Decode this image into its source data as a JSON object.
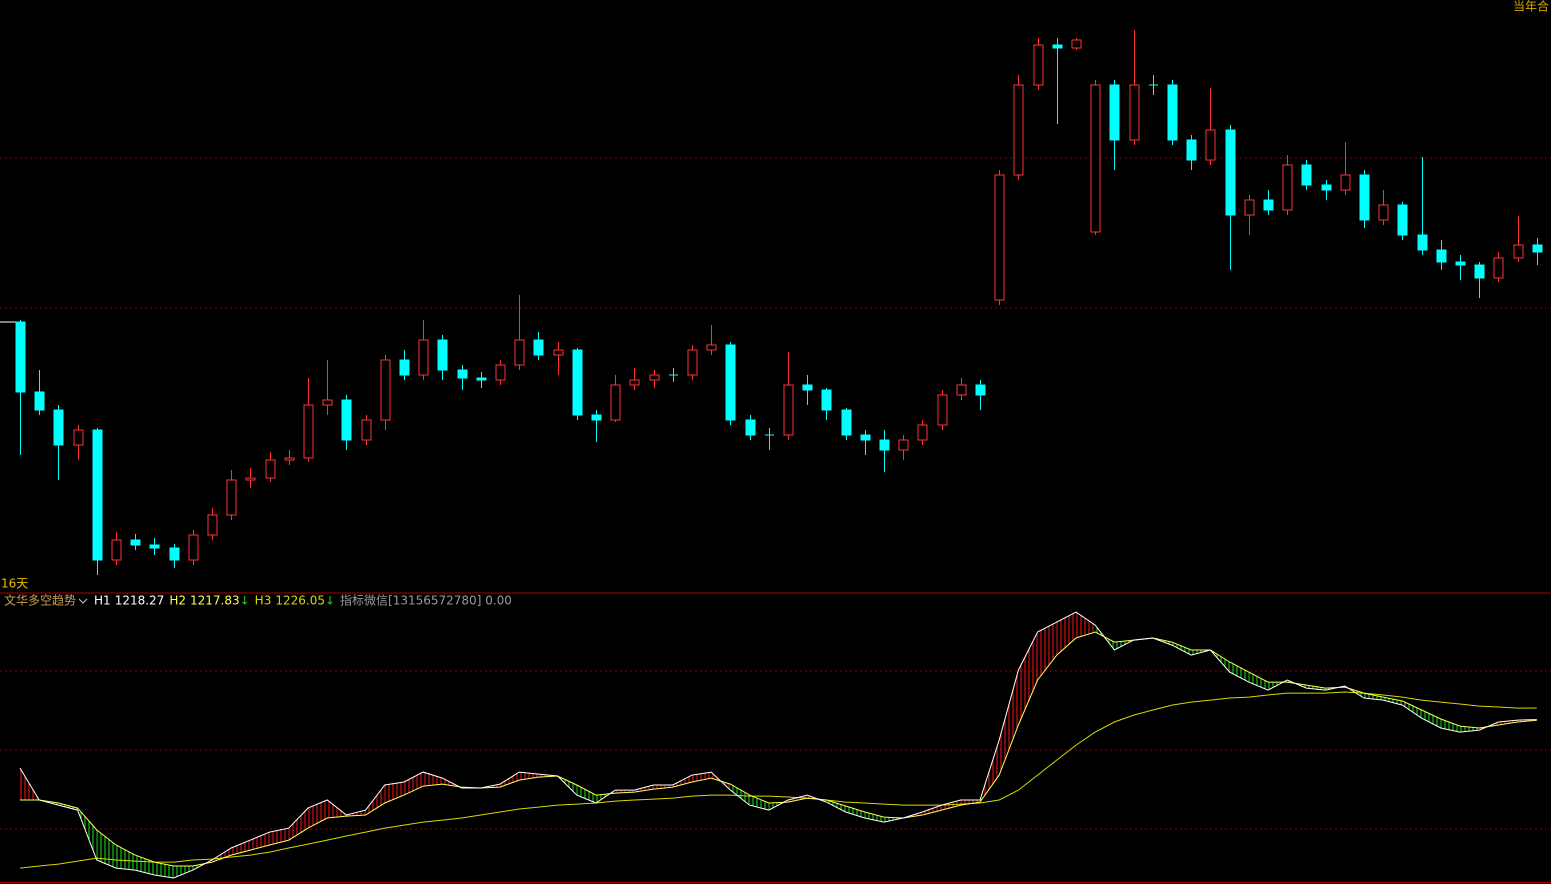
{
  "chart_data": [
    {
      "type": "candlestick",
      "corner_label": "当年合",
      "period_label": "16天",
      "up_color": "#ff3232",
      "down_color": "#00ffff",
      "ylim": [
        10,
        600
      ],
      "open": [
        278,
        208,
        190,
        155,
        170,
        40,
        60,
        55,
        52,
        40,
        65,
        85,
        120,
        122,
        140,
        142,
        195,
        200,
        160,
        180,
        240,
        225,
        260,
        230,
        222,
        220,
        235,
        260,
        245,
        250,
        185,
        180,
        215,
        220,
        225,
        225,
        250,
        255,
        180,
        165,
        165,
        215,
        210,
        190,
        165,
        160,
        150,
        160,
        175,
        205,
        215,
        300,
        425,
        515,
        555,
        552,
        368,
        515,
        460,
        515,
        515,
        460,
        440,
        470,
        385,
        400,
        390,
        435,
        415,
        410,
        425,
        380,
        395,
        365,
        350,
        338,
        335,
        322,
        342,
        355
      ],
      "high": [
        280,
        230,
        195,
        175,
        172,
        68,
        66,
        62,
        56,
        70,
        92,
        130,
        132,
        148,
        150,
        222,
        240,
        205,
        185,
        245,
        250,
        280,
        265,
        235,
        228,
        240,
        305,
        268,
        258,
        252,
        190,
        225,
        232,
        230,
        232,
        255,
        275,
        258,
        185,
        172,
        248,
        225,
        212,
        192,
        170,
        170,
        165,
        180,
        210,
        222,
        220,
        430,
        525,
        562,
        562,
        562,
        520,
        520,
        570,
        525,
        520,
        465,
        512,
        475,
        405,
        410,
        445,
        440,
        420,
        458,
        430,
        410,
        398,
        443,
        360,
        345,
        338,
        348,
        384,
        362
      ],
      "low": [
        145,
        185,
        120,
        140,
        25,
        35,
        50,
        45,
        32,
        35,
        60,
        80,
        112,
        118,
        135,
        138,
        185,
        150,
        155,
        170,
        220,
        220,
        220,
        210,
        212,
        215,
        230,
        240,
        225,
        180,
        158,
        178,
        210,
        212,
        218,
        220,
        245,
        175,
        160,
        150,
        160,
        195,
        180,
        160,
        145,
        128,
        140,
        155,
        170,
        200,
        190,
        295,
        420,
        510,
        476,
        550,
        365,
        430,
        455,
        505,
        455,
        430,
        435,
        330,
        365,
        385,
        385,
        410,
        400,
        405,
        372,
        375,
        360,
        345,
        330,
        320,
        302,
        318,
        338,
        335
      ],
      "close": [
        208,
        190,
        155,
        170,
        40,
        60,
        55,
        52,
        40,
        65,
        85,
        120,
        122,
        140,
        142,
        195,
        200,
        160,
        180,
        240,
        225,
        260,
        230,
        222,
        220,
        235,
        260,
        245,
        250,
        185,
        180,
        215,
        220,
        225,
        225,
        250,
        255,
        180,
        165,
        165,
        215,
        210,
        190,
        165,
        160,
        150,
        160,
        175,
        205,
        215,
        205,
        425,
        515,
        555,
        552,
        560,
        515,
        460,
        515,
        515,
        460,
        440,
        470,
        385,
        400,
        390,
        435,
        415,
        410,
        425,
        380,
        395,
        365,
        350,
        338,
        335,
        322,
        342,
        355,
        348
      ]
    },
    {
      "type": "line",
      "title": "文华多空趋势",
      "info_text": "指标微信[13156572780] 0.00",
      "ylim": [
        1108.7,
        1302.7
      ],
      "hatch_up_color": "#d01010",
      "hatch_down_color": "#10c010",
      "series": [
        {
          "name": "H1",
          "color": "#ffffff",
          "values": [
            1186,
            1164.7,
            1161.3,
            1158,
            1124.7,
            1119.3,
            1118,
            1114.7,
            1112.7,
            1118,
            1124.7,
            1132.7,
            1138,
            1143.3,
            1146,
            1159.3,
            1164.7,
            1154.7,
            1158,
            1174.7,
            1176.7,
            1183.3,
            1179.3,
            1172.7,
            1172.7,
            1175.3,
            1183.3,
            1182,
            1180.7,
            1168,
            1162.7,
            1171.3,
            1171.3,
            1174.7,
            1174.7,
            1181.3,
            1183.3,
            1171.3,
            1161.3,
            1158,
            1164.7,
            1168,
            1163.3,
            1156.7,
            1152.7,
            1150,
            1152.7,
            1156.7,
            1161.3,
            1164.7,
            1164.7,
            1204.7,
            1251.3,
            1276.7,
            1283.3,
            1290,
            1281.3,
            1264.7,
            1271.3,
            1272.7,
            1268,
            1261.3,
            1264.7,
            1250,
            1243.3,
            1238,
            1244.7,
            1239.3,
            1238,
            1240.7,
            1232.7,
            1231.3,
            1228,
            1219.3,
            1212.7,
            1210,
            1211.3,
            1216.7,
            1218,
            1218.27
          ]
        },
        {
          "name": "H2",
          "color": "#ffff50",
          "trend": "↓",
          "values": [
            1164.7,
            1164.7,
            1162.7,
            1159.3,
            1144.7,
            1134.7,
            1128,
            1123.3,
            1120.7,
            1120.7,
            1123.3,
            1128,
            1131.3,
            1134.7,
            1138,
            1146,
            1152.7,
            1154,
            1154.7,
            1162.7,
            1168,
            1174,
            1175.3,
            1173.3,
            1172.7,
            1173.3,
            1178,
            1180,
            1180.7,
            1174.7,
            1168,
            1169.3,
            1170,
            1172,
            1173.3,
            1176.7,
            1179.3,
            1175.3,
            1168,
            1162.7,
            1163.3,
            1166,
            1164.7,
            1160.7,
            1156.7,
            1153.3,
            1152.7,
            1154.7,
            1158,
            1161.3,
            1163.3,
            1181.3,
            1214.7,
            1244.7,
            1261.3,
            1272.7,
            1276.7,
            1270,
            1271.3,
            1272.7,
            1270,
            1264.7,
            1264.7,
            1256.7,
            1250,
            1243.3,
            1243.3,
            1241.3,
            1239.3,
            1240,
            1236,
            1233.3,
            1230.7,
            1224.7,
            1218.7,
            1214,
            1212.7,
            1214.7,
            1216.7,
            1217.83
          ]
        },
        {
          "name": "H3",
          "color": "#d8d800",
          "trend": "↓",
          "values": [
            1119.3,
            1120.7,
            1122,
            1124,
            1126,
            1124.7,
            1124,
            1123.3,
            1123.3,
            1124.7,
            1125.3,
            1126.7,
            1128,
            1130,
            1132.7,
            1135.3,
            1138,
            1140.7,
            1143.3,
            1146,
            1148,
            1150,
            1151.3,
            1152.7,
            1154.7,
            1156.7,
            1158.7,
            1160,
            1161.3,
            1162,
            1162.7,
            1164,
            1164.7,
            1165.3,
            1166,
            1167.3,
            1168,
            1168,
            1167.3,
            1167.3,
            1166.7,
            1166,
            1164.7,
            1163.3,
            1162.7,
            1162,
            1161.3,
            1161.3,
            1161.3,
            1162,
            1162.7,
            1164.7,
            1171.3,
            1181.3,
            1191.3,
            1201.3,
            1210,
            1216.7,
            1221.3,
            1224.7,
            1228,
            1230,
            1231.3,
            1232.7,
            1233.3,
            1234.7,
            1236,
            1236,
            1236,
            1236.7,
            1236,
            1234.7,
            1233.3,
            1231.3,
            1230,
            1228.7,
            1227.3,
            1226.7,
            1226,
            1226.05
          ]
        }
      ]
    }
  ]
}
